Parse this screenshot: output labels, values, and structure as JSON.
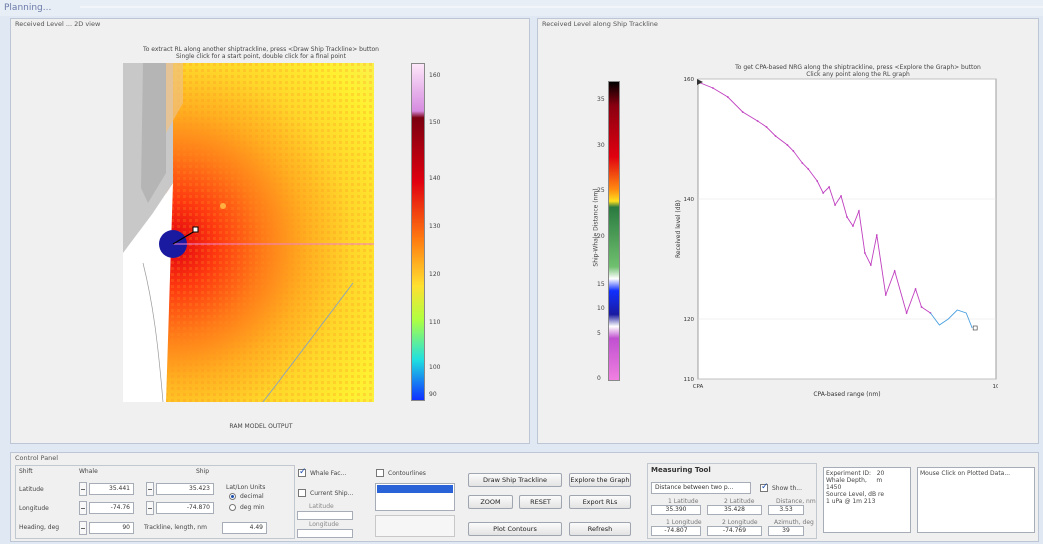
{
  "window": {
    "title": "Planning..."
  },
  "left_panel": {
    "title": "Received Level ... 2D view",
    "instructions": [
      "To extract RL along another shiptrackline, press <Draw Ship Trackline> button",
      "Single click for a start point, double click for a final point"
    ],
    "footer": "RAM MODEL OUTPUT",
    "colorbar_ticks": [
      "160",
      "150",
      "140",
      "130",
      "120",
      "110",
      "100",
      "90"
    ]
  },
  "right_panel": {
    "title": "Received Level along Ship Trackline",
    "instructions": [
      "To get CPA-based NRG along the shiptrackline, press <Explore the Graph> button",
      "Click any point along the RL graph"
    ],
    "colorbar_label": "Ship-Whale Distance (nm)",
    "colorbar_ticks": [
      "35",
      "30",
      "25",
      "20",
      "15",
      "10",
      "5",
      "0"
    ]
  },
  "chart_data": {
    "type": "line",
    "title": "",
    "xlabel": "CPA-based range (nm)",
    "ylabel": "Received level (dB)",
    "xlim": [
      0,
      10
    ],
    "ylim": [
      110,
      160
    ],
    "x_tick_labels": [
      "CPA",
      "10"
    ],
    "y_tick_labels": [
      "160",
      "140",
      "120",
      "110"
    ],
    "series": [
      {
        "color": "#c040c0",
        "x": [
          0.0,
          0.5,
          1.0,
          1.5,
          2.0,
          2.3,
          2.6,
          3.0,
          3.2,
          3.5,
          3.7,
          4.0,
          4.2,
          4.4,
          4.6,
          4.8,
          5.0,
          5.2,
          5.4,
          5.6,
          5.8,
          6.0,
          6.3,
          6.6,
          7.0,
          7.3,
          7.5,
          7.8
        ],
        "y": [
          159.5,
          158.5,
          157.0,
          154.5,
          153.0,
          152.0,
          150.5,
          149.0,
          148.0,
          146.0,
          145.0,
          143.0,
          141.0,
          142.0,
          139.0,
          140.5,
          137.0,
          135.5,
          138.0,
          131.0,
          129.0,
          134.0,
          124.0,
          128.0,
          121.0,
          125.0,
          122.0,
          121.0
        ]
      },
      {
        "color": "#4aa0e0",
        "x": [
          7.8,
          8.1,
          8.4,
          8.7,
          9.0,
          9.2
        ],
        "y": [
          121.0,
          119.0,
          120.0,
          121.5,
          121.0,
          118.5
        ]
      }
    ]
  },
  "control_panel": {
    "title": "Control Panel",
    "header_left": "Shift",
    "header_whale": "Whale",
    "header_ship": "Ship",
    "latitude_label": "Latitude",
    "longitude_label": "Longitude",
    "heading_label": "Heading, deg",
    "whale_lat": "35.441",
    "whale_lon": "-74.76",
    "ship_lat": "35.423",
    "ship_lon": "-74.870",
    "heading_value": "90",
    "trackline_label": "Trackline, length, nm",
    "trackline_value": "4.49",
    "latlon_units_label": "Lat/Lon Units",
    "unit_decimal": "decimal",
    "unit_degmin": "deg min",
    "whale_fac_label": "Whale Fac...",
    "current_ship_label": "Current Ship...",
    "latitude_small": "Latitude",
    "longitude_small": "Longitude",
    "contour_label": "Contourlines",
    "list_items": [
      "",
      "",
      ""
    ],
    "buttons": {
      "draw": "Draw Ship Trackline",
      "explore": "Explore the Graph",
      "zoom": "ZOOM",
      "reset": "RESET",
      "export": "Export RLs",
      "plot": "Plot Contours",
      "refresh": "Refresh"
    },
    "measuring_title": "Measuring Tool",
    "measure_dropdown": "Distance between two p...",
    "show_label": "Show th...",
    "meas_headers": [
      "1 Latitude",
      "2 Latitude",
      "Distance, nm"
    ],
    "meas_row1": [
      "35.390",
      "35.428",
      "3.53"
    ],
    "meas_headers2": [
      "1 Longitude",
      "2 Longitude",
      "Azimuth, deg"
    ],
    "meas_row2": [
      "-74.807",
      "-74.769",
      "39"
    ],
    "info_text": "Experiment ID:   20\nWhale Depth,     m\n1450\nSource Level, dB re\n1 uPa @ 1m 213",
    "mouse_text": "Mouse Click on Plotted Data..."
  },
  "colors": {
    "accent": "#1d4fb0",
    "background": "#f0f0f0"
  }
}
